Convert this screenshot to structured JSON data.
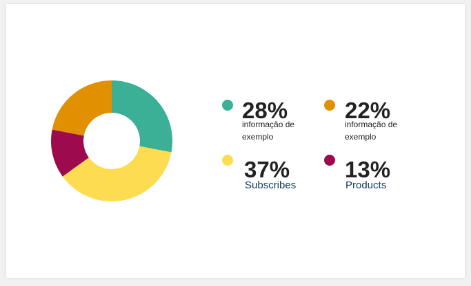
{
  "chart_data": {
    "type": "pie",
    "variant": "donut",
    "slices": [
      {
        "value": 28,
        "color": "#3bb096",
        "label": "28%",
        "description": "informação de exemplo"
      },
      {
        "value": 22,
        "color": "#e09000",
        "label": "22%",
        "description": "informação de exemplo"
      },
      {
        "value": 37,
        "color": "#fddc52",
        "label": "37%",
        "description": "Subscribes"
      },
      {
        "value": 13,
        "color": "#9e0a4e",
        "label": "13%",
        "description": "Products"
      }
    ]
  }
}
